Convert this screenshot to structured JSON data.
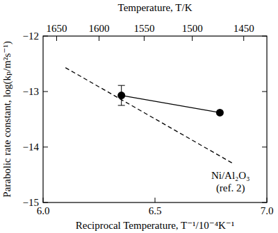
{
  "chart_data": {
    "type": "scatter",
    "x_label": "Reciprocal Temperature, T⁻¹/10⁻⁴K⁻¹",
    "y_label": "Parabolic rate constant, log(kₚ/m²s⁻¹)",
    "x2_label": "Temperature, T/K",
    "xlim": [
      6.0,
      7.0
    ],
    "xticks": [
      {
        "value": 6.0,
        "label": "6.0"
      },
      {
        "value": 6.5,
        "label": "6.5"
      },
      {
        "value": 7.0,
        "label": "7.0"
      }
    ],
    "ylim": [
      -15,
      -12
    ],
    "yticks": [
      -15,
      -14,
      -13,
      -12
    ],
    "x2ticks": [
      1650,
      1600,
      1550,
      1500,
      1450
    ],
    "series": [
      {
        "type": "line",
        "line_style": "dashed",
        "color": "#000000",
        "x": [
          6.1,
          6.85
        ],
        "values": [
          -12.57,
          -14.3
        ]
      },
      {
        "type": "scatter",
        "marker": "circle",
        "line_style": "solid",
        "color": "#000000",
        "x": [
          6.35,
          6.79
        ],
        "values": [
          -13.07,
          -13.38
        ],
        "errors": [
          0.18,
          null
        ]
      }
    ],
    "annotations": [
      {
        "text": "Ni/Al₂O₃"
      },
      {
        "text": "(ref. 2)"
      }
    ]
  }
}
